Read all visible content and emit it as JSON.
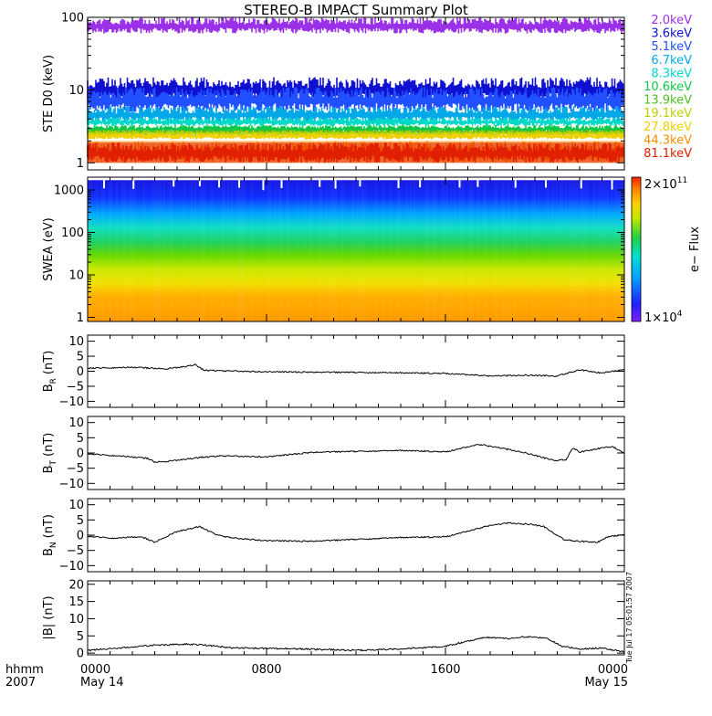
{
  "title": "STEREO-B IMPACT Summary Plot",
  "chart_data": [
    {
      "type": "line",
      "panel": "ste",
      "ylabel": "STE D0 (keV)",
      "yscale": "log",
      "ylim": [
        0.8,
        100
      ],
      "yticks": [
        {
          "v": 1,
          "t": "1"
        },
        {
          "v": 10,
          "t": "10"
        },
        {
          "v": 100,
          "t": "100"
        }
      ],
      "series": [
        {
          "name": "2.0keV",
          "color": "#9a30e8",
          "band": [
            60,
            100
          ]
        },
        {
          "name": "3.6keV",
          "color": "#1010d0",
          "band": [
            7,
            15
          ]
        },
        {
          "name": "5.1keV",
          "color": "#2050ff",
          "band": [
            5,
            11
          ]
        },
        {
          "name": "6.7keV",
          "color": "#00a8e8",
          "band": [
            3.6,
            6
          ]
        },
        {
          "name": "8.3keV",
          "color": "#00d8c8",
          "band": [
            3.2,
            4.2
          ]
        },
        {
          "name": "10.6keV",
          "color": "#10c848",
          "band": [
            2.6,
            3.3
          ]
        },
        {
          "name": "13.9keV",
          "color": "#50c020",
          "band": [
            2.5,
            2.9
          ]
        },
        {
          "name": "19.1keV",
          "color": "#b8d000",
          "band": [
            2.3,
            2.8
          ]
        },
        {
          "name": "27.8keV",
          "color": "#f0d000",
          "band": [
            2.1,
            2.6
          ]
        },
        {
          "name": "44.3keV",
          "color": "#ff8c00",
          "band": [
            1.0,
            2.0
          ]
        },
        {
          "name": "81.1keV",
          "color": "#e02000",
          "band": [
            1.0,
            1.9
          ]
        }
      ]
    },
    {
      "type": "heatmap",
      "panel": "swea",
      "ylabel": "SWEA (eV)",
      "yscale": "log",
      "ylim": [
        0.8,
        2000
      ],
      "yticks": [
        {
          "v": 1,
          "t": "1"
        },
        {
          "v": 10,
          "t": "10"
        },
        {
          "v": 100,
          "t": "100"
        },
        {
          "v": 1000,
          "t": "1000"
        }
      ],
      "colorbar": {
        "label": "e− Flux",
        "min_label": "1×10",
        "min_exp": "4",
        "max_label": "2×10",
        "max_exp": "11"
      }
    },
    {
      "type": "line",
      "panel": "br",
      "ylabel_main": "B",
      "ylabel_sub": "R",
      "ylabel_unit": "(nT)",
      "ylim": [
        -12,
        12
      ],
      "yticks": [
        {
          "v": -10,
          "t": "−10"
        },
        {
          "v": -5,
          "t": "−5"
        },
        {
          "v": 0,
          "t": "0"
        },
        {
          "v": 5,
          "t": "5"
        },
        {
          "v": 10,
          "t": "10"
        }
      ],
      "x": [
        0,
        2,
        3.5,
        4.3,
        4.8,
        5.2,
        6,
        8,
        12,
        16,
        18,
        19.5,
        21,
        22,
        23,
        24
      ],
      "values": [
        1,
        1.3,
        0.8,
        1.5,
        2.2,
        0.3,
        0.1,
        -0.2,
        -0.4,
        -0.7,
        -1.6,
        -1.3,
        -1.6,
        0.5,
        -0.6,
        0.6
      ]
    },
    {
      "type": "line",
      "panel": "bt",
      "ylabel_main": "B",
      "ylabel_sub": "T",
      "ylabel_unit": "(nT)",
      "ylim": [
        -12,
        12
      ],
      "yticks": [
        {
          "v": -10,
          "t": "−10"
        },
        {
          "v": -5,
          "t": "−5"
        },
        {
          "v": 0,
          "t": "0"
        },
        {
          "v": 5,
          "t": "5"
        },
        {
          "v": 10,
          "t": "10"
        }
      ],
      "x": [
        0,
        1.5,
        2.7,
        3,
        3.5,
        5,
        6,
        8,
        10,
        14,
        16,
        17.5,
        18.5,
        19.5,
        20.5,
        21,
        21.4,
        21.7,
        22,
        23,
        23.5,
        24
      ],
      "values": [
        -0.3,
        -1,
        -1.8,
        -3,
        -2.8,
        -1.5,
        -1,
        -1.3,
        0.2,
        0.8,
        0.4,
        2.8,
        1.6,
        0.2,
        -1.8,
        -2.5,
        -2.2,
        1.8,
        0.3,
        1.7,
        2,
        -0.1
      ]
    },
    {
      "type": "line",
      "panel": "bn",
      "ylabel_main": "B",
      "ylabel_sub": "N",
      "ylabel_unit": "(nT)",
      "ylim": [
        -12,
        12
      ],
      "yticks": [
        {
          "v": -10,
          "t": "−10"
        },
        {
          "v": -5,
          "t": "−5"
        },
        {
          "v": 0,
          "t": "0"
        },
        {
          "v": 5,
          "t": "5"
        },
        {
          "v": 10,
          "t": "10"
        }
      ],
      "x": [
        0,
        1.2,
        2,
        2.5,
        3,
        4,
        5,
        5.8,
        6.5,
        8,
        10,
        12,
        14,
        16,
        17,
        18,
        18.8,
        19.8,
        20.4,
        21.3,
        22,
        22.8,
        23.3,
        24
      ],
      "values": [
        -0.4,
        -1,
        -0.6,
        -0.8,
        -2.3,
        1.2,
        2.8,
        0,
        -1,
        -1.8,
        -2,
        -1.4,
        -0.8,
        -0.5,
        1.3,
        3.2,
        4,
        3.6,
        2.8,
        -1.5,
        -2,
        -2.3,
        -0.5,
        0.2
      ]
    },
    {
      "type": "line",
      "panel": "bmag",
      "ylabel": "|B| (nT)",
      "ylim": [
        -0.5,
        21
      ],
      "yticks": [
        {
          "v": 0,
          "t": "0"
        },
        {
          "v": 5,
          "t": "5"
        },
        {
          "v": 10,
          "t": "10"
        },
        {
          "v": 15,
          "t": "15"
        },
        {
          "v": 20,
          "t": "20"
        }
      ],
      "x": [
        0,
        1.5,
        3,
        4.5,
        5.3,
        6.5,
        9,
        12,
        14,
        16,
        17,
        17.8,
        18.8,
        19.5,
        20.5,
        21.2,
        22,
        23,
        24
      ],
      "values": [
        0.8,
        1.5,
        2.3,
        2.6,
        2.3,
        1.5,
        1.3,
        0.8,
        1.2,
        2,
        3.5,
        4.6,
        4.2,
        4.7,
        4.5,
        2,
        1.2,
        1.5,
        0.4
      ]
    }
  ],
  "xaxis": {
    "xlim": [
      0,
      24
    ],
    "ticks": [
      {
        "v": 0,
        "t": "0000",
        "d": "May 14"
      },
      {
        "v": 8,
        "t": "0800",
        "d": ""
      },
      {
        "v": 16,
        "t": "1600",
        "d": ""
      },
      {
        "v": 24,
        "t": "0000",
        "d": "May 15"
      }
    ],
    "label_top": "hhmm",
    "label_bottom": "2007"
  },
  "timestamp": "Tue Jul 17 05:01:57 2007"
}
